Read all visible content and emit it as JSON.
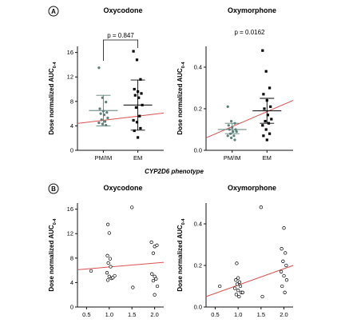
{
  "figure": {
    "panel_a_label": "A",
    "panel_b_label": "B",
    "shared_xlabel": "CYP2D6 phenotype"
  },
  "chart_data": [
    {
      "id": "a1",
      "type": "scatter",
      "title": "Oxycodone",
      "p_text": "p = 0.847",
      "ylabel": "Dose normalized AUC",
      "ylabel_sub": "0-4",
      "categories": [
        "PM/IM",
        "EM"
      ],
      "ylim": [
        0,
        17
      ],
      "yticks": [
        0,
        4,
        8,
        12,
        16
      ],
      "series": [
        {
          "category": "PM/IM",
          "marker": "dot-gray",
          "values": [
            13.5,
            8.6,
            7.9,
            6.8,
            6.4,
            6.2,
            6.0,
            5.8,
            5.3,
            5.0,
            4.7,
            4.5,
            4.3,
            4.1
          ]
        },
        {
          "category": "EM",
          "marker": "square-black",
          "values": [
            16.2,
            14.8,
            11.6,
            10.0,
            9.6,
            9.3,
            9.0,
            8.6,
            7.4,
            7.0,
            5.6,
            4.9,
            4.6,
            3.6,
            3.2,
            2.1
          ]
        }
      ],
      "summary": [
        {
          "category": "PM/IM",
          "mean": 6.5,
          "upper": 9.0,
          "lower": 4.0
        },
        {
          "category": "EM",
          "mean": 7.4,
          "upper": 11.5,
          "lower": 3.3
        }
      ],
      "fit_line": {
        "x": [
          0.25,
          2.75
        ],
        "y": [
          4.4,
          6.1
        ]
      },
      "colors": {
        "line": "#d9534f",
        "pm": "#5a7f78",
        "em": "#000000"
      }
    },
    {
      "id": "a2",
      "type": "scatter",
      "title": "Oxymorphone",
      "p_text": "p = 0.0162",
      "ylabel": "Dose normalized AUC",
      "ylabel_sub": "0-4",
      "categories": [
        "PM/IM",
        "EM"
      ],
      "ylim": [
        0,
        0.5
      ],
      "yticks": [
        0,
        0.2,
        0.4
      ],
      "yticklabels": [
        "0.0",
        "0.2",
        "0.4"
      ],
      "series": [
        {
          "category": "PM/IM",
          "marker": "dot-gray",
          "values": [
            0.21,
            0.14,
            0.13,
            0.12,
            0.11,
            0.1,
            0.1,
            0.09,
            0.09,
            0.08,
            0.07,
            0.07,
            0.06,
            0.05
          ]
        },
        {
          "category": "EM",
          "marker": "square-black",
          "values": [
            0.48,
            0.38,
            0.3,
            0.27,
            0.24,
            0.21,
            0.2,
            0.17,
            0.15,
            0.14,
            0.13,
            0.12,
            0.1,
            0.08,
            0.07,
            0.05
          ]
        }
      ],
      "summary": [
        {
          "category": "PM/IM",
          "mean": 0.1,
          "upper": 0.13,
          "lower": 0.08
        },
        {
          "category": "EM",
          "mean": 0.19,
          "upper": 0.25,
          "lower": 0.13
        }
      ],
      "fit_line": {
        "x": [
          0.25,
          2.75
        ],
        "y": [
          0.06,
          0.24
        ]
      },
      "colors": {
        "line": "#d9534f",
        "pm": "#5a7f78",
        "em": "#000000"
      }
    },
    {
      "id": "b1",
      "type": "scatter",
      "title": "Oxycodone",
      "ylabel": "Dose normalized AUC",
      "ylabel_sub": "0-4",
      "xlim": [
        0.3,
        2.2
      ],
      "xticks": [
        0.5,
        1.0,
        1.5,
        2.0
      ],
      "xticklabels": [
        "0.5",
        "1.0",
        "1.5",
        "2.0"
      ],
      "ylim": [
        0,
        17
      ],
      "yticks": [
        0,
        4,
        8,
        12,
        16
      ],
      "points": [
        {
          "x": 0.6,
          "y": 5.9
        },
        {
          "x": 0.97,
          "y": 13.5
        },
        {
          "x": 1.0,
          "y": 12.1
        },
        {
          "x": 0.96,
          "y": 8.4
        },
        {
          "x": 1.02,
          "y": 7.9
        },
        {
          "x": 0.98,
          "y": 7.2
        },
        {
          "x": 1.03,
          "y": 6.6
        },
        {
          "x": 0.95,
          "y": 5.6
        },
        {
          "x": 1.0,
          "y": 5.0
        },
        {
          "x": 1.05,
          "y": 4.7
        },
        {
          "x": 0.97,
          "y": 4.4
        },
        {
          "x": 1.08,
          "y": 4.8
        },
        {
          "x": 1.12,
          "y": 5.1
        },
        {
          "x": 1.5,
          "y": 16.3
        },
        {
          "x": 1.52,
          "y": 3.2
        },
        {
          "x": 1.93,
          "y": 10.6
        },
        {
          "x": 2.0,
          "y": 9.9
        },
        {
          "x": 1.97,
          "y": 8.8
        },
        {
          "x": 2.05,
          "y": 10.1
        },
        {
          "x": 1.94,
          "y": 5.4
        },
        {
          "x": 2.0,
          "y": 5.0
        },
        {
          "x": 2.03,
          "y": 4.6
        },
        {
          "x": 1.97,
          "y": 4.3
        },
        {
          "x": 2.06,
          "y": 3.4
        },
        {
          "x": 2.0,
          "y": 2.0
        }
      ],
      "fit_line": {
        "x": [
          0.3,
          2.2
        ],
        "y": [
          6.1,
          7.3
        ]
      },
      "colors": {
        "line": "#d9534f",
        "point": "#000000"
      }
    },
    {
      "id": "b2",
      "type": "scatter",
      "title": "Oxymorphone",
      "ylabel": "Dose normalized AUC",
      "ylabel_sub": "0-4",
      "xlim": [
        0.3,
        2.2
      ],
      "xticks": [
        0.5,
        1.0,
        1.5,
        2.0
      ],
      "xticklabels": [
        "0.5",
        "1.0",
        "1.5",
        "2.0"
      ],
      "ylim": [
        0,
        0.5
      ],
      "yticks": [
        0,
        0.2,
        0.4
      ],
      "yticklabels": [
        "0.0",
        "0.2",
        "0.4"
      ],
      "points": [
        {
          "x": 0.6,
          "y": 0.1
        },
        {
          "x": 0.97,
          "y": 0.21
        },
        {
          "x": 1.0,
          "y": 0.14
        },
        {
          "x": 0.95,
          "y": 0.13
        },
        {
          "x": 1.03,
          "y": 0.12
        },
        {
          "x": 0.98,
          "y": 0.11
        },
        {
          "x": 1.05,
          "y": 0.1
        },
        {
          "x": 0.93,
          "y": 0.09
        },
        {
          "x": 1.0,
          "y": 0.08
        },
        {
          "x": 1.07,
          "y": 0.07
        },
        {
          "x": 0.96,
          "y": 0.06
        },
        {
          "x": 1.02,
          "y": 0.05
        },
        {
          "x": 1.1,
          "y": 0.07
        },
        {
          "x": 1.5,
          "y": 0.48
        },
        {
          "x": 1.53,
          "y": 0.05
        },
        {
          "x": 2.0,
          "y": 0.38
        },
        {
          "x": 1.95,
          "y": 0.28
        },
        {
          "x": 2.03,
          "y": 0.26
        },
        {
          "x": 1.98,
          "y": 0.22
        },
        {
          "x": 2.05,
          "y": 0.2
        },
        {
          "x": 1.94,
          "y": 0.17
        },
        {
          "x": 2.0,
          "y": 0.15
        },
        {
          "x": 2.06,
          "y": 0.13
        },
        {
          "x": 1.96,
          "y": 0.1
        },
        {
          "x": 2.02,
          "y": 0.07
        }
      ],
      "fit_line": {
        "x": [
          0.3,
          2.2
        ],
        "y": [
          0.05,
          0.2
        ]
      },
      "colors": {
        "line": "#d9534f",
        "point": "#000000"
      }
    }
  ]
}
